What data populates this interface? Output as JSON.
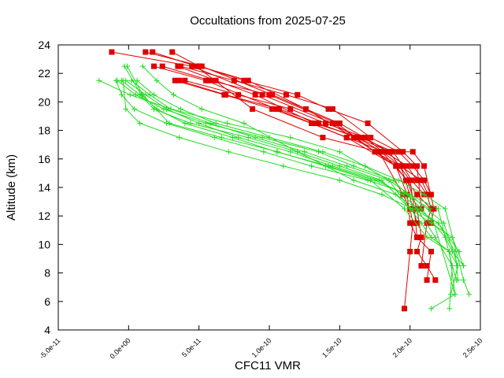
{
  "chart_data": {
    "type": "line",
    "title": "Occultations from 2025-07-25",
    "xlabel": "CFC11 VMR",
    "ylabel": "Altitude (km)",
    "xlim": [
      -5e-11,
      2.5e-10
    ],
    "ylim": [
      4,
      24
    ],
    "x_ticks": [
      -5e-11,
      0,
      5e-11,
      1e-10,
      1.5e-10,
      2e-10,
      2.5e-10
    ],
    "x_tick_labels": [
      "-5.0e-11",
      "0.0e+00",
      "5.0e-11",
      "1.0e-10",
      "1.5e-10",
      "2.0e-10",
      "2.5e-10"
    ],
    "y_ticks": [
      4,
      6,
      8,
      10,
      12,
      14,
      16,
      18,
      20,
      22,
      24
    ],
    "y_tick_labels": [
      "4",
      "6",
      "8",
      "10",
      "12",
      "14",
      "16",
      "18",
      "20",
      "22",
      "24"
    ],
    "grid": false,
    "colors": {
      "red": "#e00000",
      "green": "#22dd22",
      "axis": "#000000"
    },
    "red_series": [
      {
        "name": "red-1",
        "x": [
          -1.2e-11,
          4.5e-11,
          9.5e-11,
          1.45e-10,
          1.8e-10,
          1.98e-10,
          2.05e-10,
          2.08e-10,
          2.05e-10,
          2.12e-10,
          2.18e-10
        ],
        "y": [
          23.5,
          22.5,
          20.5,
          18.5,
          16.5,
          14.5,
          12.5,
          10.5,
          9.5,
          8.5,
          7.5
        ]
      },
      {
        "name": "red-2",
        "x": [
          1.2e-11,
          5.2e-11,
          1.02e-10,
          1.5e-10,
          1.85e-10,
          2e-10,
          2.03e-10,
          2.05e-10,
          2.15e-10,
          2.12e-10
        ],
        "y": [
          23.5,
          22.5,
          20.5,
          18.5,
          16.5,
          14.5,
          12.5,
          10.5,
          9.5,
          7.5
        ]
      },
      {
        "name": "red-3",
        "x": [
          1.7e-11,
          4.8e-11,
          8.8e-11,
          1.38e-10,
          1.78e-10,
          1.95e-10,
          2e-10,
          2.02e-10,
          2e-10,
          1.96e-10
        ],
        "y": [
          23.5,
          22.5,
          19.5,
          17.5,
          16.5,
          13.5,
          12.5,
          11.5,
          9.5,
          5.5
        ]
      },
      {
        "name": "red-4",
        "x": [
          3.1e-11,
          5e-11,
          8.5e-11,
          1.26e-10,
          1.6e-10,
          1.9e-10,
          1.98e-10,
          2e-10,
          2.05e-10
        ],
        "y": [
          23.5,
          22.5,
          21.5,
          19.5,
          17.5,
          15.5,
          13.5,
          11.5,
          10.5
        ]
      },
      {
        "name": "red-5",
        "x": [
          1.8e-11,
          5.5e-11,
          1.05e-10,
          1.55e-10,
          1.9e-10,
          2.05e-10,
          2.15e-10,
          2.12e-10,
          2.08e-10
        ],
        "y": [
          22.5,
          21.5,
          19.5,
          17.5,
          15.5,
          13.5,
          12.5,
          11.5,
          8.5
        ]
      },
      {
        "name": "red-6",
        "x": [
          2.4e-11,
          5.8e-11,
          1e-10,
          1.48e-10,
          1.75e-10,
          1.93e-10,
          1.97e-10,
          2.02e-10,
          2.05e-10
        ],
        "y": [
          22.5,
          21.5,
          20.5,
          18.5,
          16.5,
          15.5,
          14.5,
          12.5,
          11.5
        ]
      },
      {
        "name": "red-7",
        "x": [
          3.5e-11,
          6.2e-11,
          9e-11,
          1.32e-10,
          1.65e-10,
          1.88e-10,
          1.95e-10,
          2.01e-10,
          2.1e-10
        ],
        "y": [
          22.5,
          21.5,
          20.5,
          18.5,
          17.5,
          16.5,
          15.5,
          14.5,
          13.5
        ]
      },
      {
        "name": "red-8",
        "x": [
          3.7e-11,
          7.5e-11,
          1.12e-10,
          1.45e-10,
          1.72e-10,
          1.92e-10,
          2.02e-10,
          2.1e-10,
          2.15e-10
        ],
        "y": [
          22.5,
          21.5,
          20.5,
          19.5,
          17.5,
          16.5,
          15.5,
          14.5,
          13.5
        ]
      },
      {
        "name": "red-9",
        "x": [
          3.3e-11,
          6.8e-11,
          1.02e-10,
          1.3e-10,
          1.55e-10,
          1.82e-10,
          1.98e-10,
          2.05e-10,
          2.12e-10,
          2.15e-10
        ],
        "y": [
          21.5,
          20.5,
          19.5,
          18.5,
          17.5,
          16.5,
          15.5,
          14.5,
          13.5,
          12.5
        ]
      },
      {
        "name": "red-10",
        "x": [
          3.6e-11,
          6.9e-11,
          1.07e-10,
          1.35e-10,
          1.62e-10,
          1.86e-10,
          2.02e-10,
          2.1e-10,
          2.17e-10,
          2.15e-10
        ],
        "y": [
          21.5,
          20.5,
          19.5,
          18.5,
          17.5,
          16.5,
          16.5,
          15.5,
          12.5,
          11.5
        ]
      },
      {
        "name": "red-11",
        "x": [
          4e-11,
          7.8e-11,
          1.15e-10,
          1.4e-10,
          1.68e-10,
          1.93e-10,
          2.08e-10,
          2.13e-10
        ],
        "y": [
          21.5,
          20.5,
          19.5,
          18.5,
          17.5,
          15.5,
          14.5,
          13.5
        ]
      },
      {
        "name": "red-12",
        "x": [
          5e-11,
          8.2e-11,
          1.2e-10,
          1.42e-10,
          1.7e-10,
          1.95e-10,
          2.05e-10,
          2.08e-10
        ],
        "y": [
          22.5,
          21.5,
          20.5,
          19.5,
          18.5,
          16.5,
          15.5,
          12.5
        ]
      }
    ],
    "green_series": [
      {
        "name": "green-1",
        "x": [
          -2.1e-11,
          1e-12,
          3e-11,
          7e-11,
          1.15e-10,
          1.5e-10,
          1.85e-10,
          2e-10,
          2.08e-10,
          2.15e-10,
          2.28e-10,
          2.34e-10
        ],
        "y": [
          21.5,
          20.5,
          19.5,
          18.5,
          17.5,
          16.5,
          14.5,
          12.5,
          11.5,
          10.5,
          9.5,
          8.5
        ]
      },
      {
        "name": "green-2",
        "x": [
          -8e-12,
          5e-12,
          2.5e-11,
          5.5e-11,
          9.5e-11,
          1.35e-10,
          1.6e-10,
          1.88e-10,
          2.08e-10,
          2.25e-10,
          2.3e-10,
          2.38e-10
        ],
        "y": [
          21.5,
          20.5,
          19.5,
          18.5,
          17.5,
          16.5,
          15.5,
          14.5,
          12.5,
          10.5,
          9.5,
          8.5
        ]
      },
      {
        "name": "green-3",
        "x": [
          -5e-12,
          8e-12,
          1.8e-11,
          4.4e-11,
          8.5e-11,
          1.2e-10,
          1.5e-10,
          1.8e-10,
          2e-10,
          2.15e-10,
          2.3e-10,
          2.38e-10
        ],
        "y": [
          21.5,
          20.5,
          19.5,
          18.5,
          17.5,
          16.5,
          15.5,
          14.5,
          12.5,
          11.5,
          10.5,
          8.5
        ]
      },
      {
        "name": "green-4",
        "x": [
          -2e-12,
          1.2e-11,
          2.7e-11,
          5e-11,
          7.8e-11,
          1.15e-10,
          1.45e-10,
          1.78e-10,
          1.95e-10,
          2.05e-10,
          2.2e-10,
          2.35e-10
        ],
        "y": [
          21.5,
          20.5,
          19.5,
          18.5,
          17.5,
          16.5,
          15.5,
          14.5,
          13.5,
          12.5,
          11.5,
          9.5
        ]
      },
      {
        "name": "green-5",
        "x": [
          2e-12,
          1.5e-11,
          3e-11,
          5.8e-11,
          9e-11,
          1.25e-10,
          1.55e-10,
          1.85e-10,
          2e-10,
          2.2e-10,
          2.3e-10,
          2.33e-10
        ],
        "y": [
          21.5,
          20.5,
          19.5,
          18.5,
          17.5,
          16.5,
          15.5,
          14.5,
          13.5,
          12.5,
          8.5,
          7.5
        ]
      },
      {
        "name": "green-6",
        "x": [
          6e-12,
          1.8e-11,
          3.7e-11,
          6.2e-11,
          1e-10,
          1.38e-10,
          1.68e-10,
          1.92e-10,
          2.1e-10,
          2.25e-10,
          2.38e-10,
          2.42e-10
        ],
        "y": [
          21.5,
          20.5,
          19.5,
          18.5,
          17.5,
          16.5,
          15.5,
          14.5,
          13.5,
          12.5,
          7.5,
          6.5
        ]
      },
      {
        "name": "green-7",
        "x": [
          1e-11,
          2e-11,
          3.2e-11,
          5.2e-11,
          8.2e-11,
          1.2e-10,
          1.6e-10,
          1.9e-10,
          2.05e-10,
          2.18e-10,
          2.3e-10,
          2.28e-10
        ],
        "y": [
          22.5,
          21.5,
          20.5,
          19.5,
          18.5,
          16.5,
          14.5,
          13.5,
          12.5,
          10.5,
          8.5,
          5.5
        ]
      },
      {
        "name": "green-8",
        "x": [
          -3e-12,
          9e-12,
          2e-11,
          4e-11,
          7.4e-11,
          1.05e-10,
          1.42e-10,
          1.75e-10,
          1.98e-10,
          2.14e-10,
          2.32e-10,
          2.15e-10
        ],
        "y": [
          22.5,
          20.5,
          19.5,
          18.5,
          17.5,
          16.5,
          15.5,
          14.5,
          13.5,
          12.5,
          6.5,
          5.5
        ]
      },
      {
        "name": "green-9",
        "x": [
          -1e-12,
          1e-11,
          2.9e-11,
          6.6e-11,
          1.06e-10,
          1.4e-10,
          1.72e-10,
          1.96e-10,
          2.12e-10,
          2.28e-10,
          2.32e-10
        ],
        "y": [
          22.5,
          20.5,
          18.5,
          17.5,
          16.5,
          15.5,
          14.5,
          12.5,
          10.5,
          9.5,
          6.5
        ]
      },
      {
        "name": "green-10",
        "x": [
          -9e-12,
          -5e-12,
          4e-12,
          2.7e-11,
          6.1e-11,
          9.6e-11,
          1.3e-10,
          1.7e-10,
          2e-10,
          2.24e-10,
          2.34e-10,
          2.29e-10
        ],
        "y": [
          21.5,
          20.5,
          19.5,
          18.5,
          17.5,
          16.5,
          15.5,
          14.5,
          13.5,
          11.5,
          8.5,
          6.5
        ]
      },
      {
        "name": "green-11",
        "x": [
          -4e-12,
          -2e-12,
          8e-12,
          3.6e-11,
          7.1e-11,
          1.1e-10,
          1.5e-10,
          1.8e-10,
          2.02e-10,
          2.2e-10,
          2.32e-10,
          2.34e-10
        ],
        "y": [
          21.5,
          19.5,
          18.5,
          17.5,
          16.5,
          15.5,
          14.5,
          13.5,
          12.5,
          11.5,
          9.5,
          7.5
        ]
      }
    ]
  }
}
